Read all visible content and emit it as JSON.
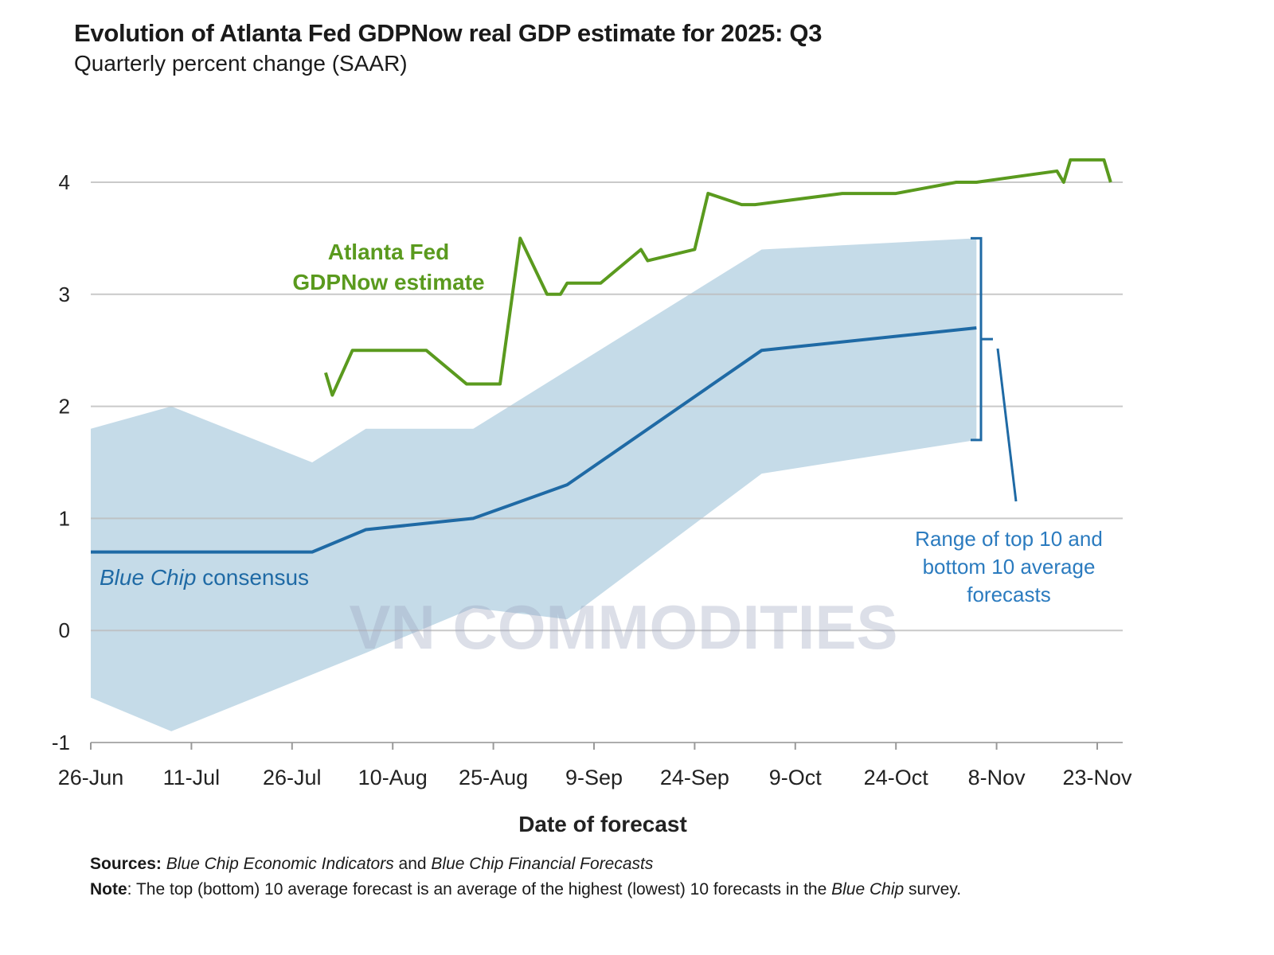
{
  "chart_data": {
    "type": "line",
    "title": "Evolution of Atlanta Fed GDPNow real GDP estimate for 2025: Q3",
    "subtitle": "Quarterly percent change (SAAR)",
    "xlabel": "Date of forecast",
    "ylabel": "",
    "xlim": [
      "2025-06-26",
      "2025-11-28"
    ],
    "ylim": [
      -1,
      4
    ],
    "yticks": [
      -1,
      0,
      1,
      2,
      3,
      4
    ],
    "xtick_labels": [
      "26-Jun",
      "11-Jul",
      "26-Jul",
      "10-Aug",
      "25-Aug",
      "9-Sep",
      "24-Sep",
      "9-Oct",
      "24-Oct",
      "8-Nov",
      "23-Nov"
    ],
    "xtick_dates": [
      "2025-06-26",
      "2025-07-11",
      "2025-07-26",
      "2025-08-10",
      "2025-08-25",
      "2025-09-09",
      "2025-09-24",
      "2025-10-09",
      "2025-10-24",
      "2025-11-08",
      "2025-11-23"
    ],
    "grid": true,
    "series": [
      {
        "name": "Atlanta Fed GDPNow estimate",
        "label_lines": [
          "Atlanta Fed",
          "GDPNow estimate"
        ],
        "color": "#5a9a1e",
        "x": [
          "2025-07-31",
          "2025-08-01",
          "2025-08-04",
          "2025-08-15",
          "2025-08-21",
          "2025-08-26",
          "2025-08-29",
          "2025-09-02",
          "2025-09-04",
          "2025-09-05",
          "2025-09-10",
          "2025-09-16",
          "2025-09-17",
          "2025-09-24",
          "2025-09-26",
          "2025-10-01",
          "2025-10-03",
          "2025-10-16",
          "2025-10-24",
          "2025-11-02",
          "2025-11-05",
          "2025-11-17",
          "2025-11-18",
          "2025-11-19",
          "2025-11-24",
          "2025-11-25"
        ],
        "y": [
          2.3,
          2.1,
          2.5,
          2.5,
          2.2,
          2.2,
          3.5,
          3.0,
          3.0,
          3.1,
          3.1,
          3.4,
          3.3,
          3.4,
          3.9,
          3.8,
          3.8,
          3.9,
          3.9,
          4.0,
          4.0,
          4.1,
          4.0,
          4.2,
          4.2,
          4.0
        ]
      },
      {
        "name": "Blue Chip consensus",
        "label_italic": "Blue Chip",
        "label_rest": " consensus",
        "color": "#1f6aa5",
        "x": [
          "2025-06-26",
          "2025-07-29",
          "2025-08-06",
          "2025-08-22",
          "2025-09-05",
          "2025-10-04",
          "2025-11-05"
        ],
        "y": [
          0.7,
          0.7,
          0.9,
          1.0,
          1.3,
          2.5,
          2.7
        ]
      }
    ],
    "band": {
      "name": "Range of top 10 and bottom 10 average forecasts",
      "label_lines": [
        "Range of top 10 and",
        "bottom 10 average",
        "forecasts"
      ],
      "color": "#c5dbe8",
      "upper": {
        "x": [
          "2025-06-26",
          "2025-07-08",
          "2025-07-29",
          "2025-08-06",
          "2025-08-22",
          "2025-10-04",
          "2025-11-05"
        ],
        "y": [
          1.8,
          2.0,
          1.5,
          1.8,
          1.8,
          3.4,
          3.5
        ]
      },
      "lower": {
        "x": [
          "2025-06-26",
          "2025-07-08",
          "2025-08-06",
          "2025-08-22",
          "2025-09-05",
          "2025-10-04",
          "2025-11-05"
        ],
        "y": [
          -0.6,
          -0.9,
          -0.2,
          0.2,
          0.1,
          1.4,
          1.7
        ]
      }
    }
  },
  "footer": {
    "sources_label": "Sources:",
    "sources_a": "Blue Chip Economic Indicators",
    "sources_and": " and ",
    "sources_b": "Blue Chip Financial Forecasts",
    "note_label": "Note",
    "note_text": ": The top (bottom) 10 average forecast is an average of the highest (lowest) 10 forecasts in the ",
    "note_italic": "Blue Chip",
    "note_end": " survey."
  },
  "watermark": "VN COMMODITIES"
}
